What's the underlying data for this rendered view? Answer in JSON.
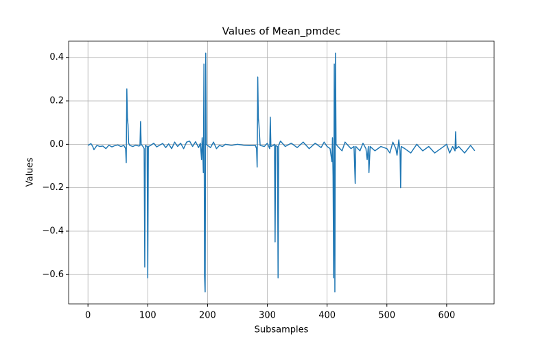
{
  "chart_data": {
    "type": "line",
    "title": "Values of Mean_pmdec",
    "x_label": "Subsamples",
    "y_label": "Values",
    "color": "#1f77b4",
    "grid": true,
    "x": [
      0,
      5,
      8,
      10,
      15,
      20,
      25,
      30,
      35,
      40,
      45,
      50,
      55,
      60,
      63,
      64,
      65,
      66,
      67,
      68,
      70,
      75,
      80,
      85,
      87,
      88,
      89,
      92,
      94,
      95,
      96,
      99,
      100,
      101,
      105,
      110,
      115,
      120,
      125,
      130,
      135,
      140,
      145,
      150,
      155,
      160,
      165,
      170,
      175,
      180,
      185,
      188,
      190,
      191,
      192,
      193,
      194,
      195,
      196,
      197,
      198,
      200,
      205,
      210,
      215,
      220,
      225,
      230,
      240,
      250,
      260,
      270,
      280,
      282,
      283,
      284,
      285,
      286,
      288,
      295,
      300,
      304,
      305,
      306,
      310,
      312,
      313,
      314,
      317,
      318,
      319,
      322,
      330,
      340,
      350,
      360,
      370,
      380,
      390,
      395,
      400,
      405,
      408,
      409,
      410,
      411,
      412,
      413,
      414,
      415,
      418,
      425,
      430,
      440,
      445,
      447,
      448,
      455,
      460,
      465,
      467,
      469,
      470,
      472,
      480,
      490,
      500,
      505,
      510,
      515,
      517,
      520,
      522,
      523,
      524,
      530,
      540,
      550,
      560,
      570,
      580,
      590,
      600,
      605,
      610,
      614,
      615,
      616,
      620,
      630,
      640,
      647
    ],
    "values": [
      -0.005,
      0.003,
      -0.01,
      -0.025,
      -0.005,
      -0.01,
      -0.008,
      -0.02,
      -0.004,
      -0.012,
      -0.006,
      -0.003,
      -0.01,
      -0.005,
      -0.02,
      -0.085,
      0.255,
      0.12,
      0.09,
      0.005,
      -0.005,
      -0.01,
      -0.004,
      -0.008,
      -0.006,
      0.105,
      0.0,
      -0.01,
      -0.02,
      -0.565,
      -0.005,
      -0.01,
      -0.615,
      -0.01,
      -0.005,
      0.005,
      -0.012,
      -0.004,
      0.004,
      -0.015,
      0.002,
      -0.02,
      0.01,
      -0.01,
      0.005,
      -0.02,
      0.01,
      0.015,
      -0.01,
      0.012,
      -0.015,
      0.005,
      -0.07,
      0.03,
      -0.02,
      -0.13,
      0.37,
      -0.605,
      -0.68,
      0.42,
      0.0,
      -0.005,
      -0.015,
      0.01,
      -0.02,
      -0.005,
      -0.01,
      0.0,
      -0.005,
      0.0,
      -0.004,
      -0.006,
      -0.005,
      -0.02,
      -0.105,
      0.31,
      0.12,
      0.09,
      -0.005,
      -0.01,
      0.005,
      -0.02,
      0.125,
      -0.01,
      -0.005,
      0.0,
      -0.45,
      -0.005,
      -0.01,
      -0.615,
      -0.005,
      0.015,
      -0.01,
      0.005,
      -0.015,
      0.01,
      -0.02,
      0.005,
      -0.015,
      0.01,
      -0.01,
      -0.02,
      -0.08,
      0.03,
      -0.145,
      -0.615,
      0.37,
      -0.68,
      0.42,
      0.0,
      -0.01,
      -0.03,
      0.01,
      -0.02,
      -0.01,
      -0.18,
      -0.01,
      -0.03,
      0.005,
      -0.02,
      -0.07,
      -0.01,
      -0.13,
      -0.01,
      -0.03,
      -0.01,
      -0.02,
      -0.04,
      0.01,
      -0.02,
      -0.05,
      0.02,
      -0.03,
      -0.2,
      -0.01,
      -0.02,
      -0.04,
      0.0,
      -0.03,
      -0.01,
      -0.04,
      -0.02,
      0.0,
      -0.04,
      -0.01,
      -0.03,
      0.058,
      -0.02,
      -0.01,
      -0.04,
      -0.005,
      -0.03
    ],
    "xlim": [
      -32.35,
      679.35
    ],
    "xticks": [
      0,
      100,
      200,
      300,
      400,
      500,
      600
    ],
    "ylim": [
      -0.735,
      0.475
    ],
    "yticks": [
      {
        "value": -0.6,
        "label": "−0.6"
      },
      {
        "value": -0.4,
        "label": "−0.4"
      },
      {
        "value": -0.2,
        "label": "−0.2"
      },
      {
        "value": 0,
        "label": "0.0"
      },
      {
        "value": 0.2,
        "label": "0.2"
      },
      {
        "value": 0.4,
        "label": "0.4"
      }
    ]
  }
}
